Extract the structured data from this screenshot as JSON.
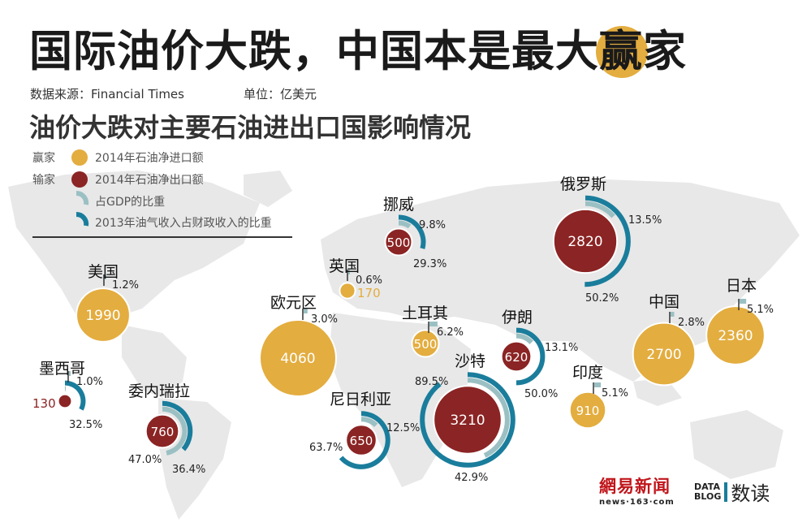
{
  "title_main": "国际油价大跌，中国本是最大",
  "title_highlight": "赢",
  "title_tail": "家",
  "source": "数据来源：Financial Times",
  "unit": "单位：亿美元",
  "subtitle": "油价大跌对主要石油进出口国影响情况",
  "legend": {
    "winner_label": "赢家",
    "loser_label": "输家",
    "import_label": "2014年石油净进口额",
    "export_label": "2014年石油净出口额",
    "gdp_label": "占GDP的比重",
    "revenue_label": "2013年油气收入占财政收入的比重"
  },
  "colors": {
    "importer": "#e3ad3f",
    "exporter": "#8b2424",
    "gdp_ring": "#9bc0c3",
    "revenue_ring": "#1a7d9c",
    "map": "#e8e8e8"
  },
  "chart_data": {
    "type": "bubble-map",
    "unit": "亿美元",
    "countries": [
      {
        "name": "美国",
        "kind": "importer",
        "value": 1990,
        "gdp_pct": 1.2
      },
      {
        "name": "墨西哥",
        "kind": "exporter",
        "value": 130,
        "gdp_pct": 1.0,
        "revenue_pct": 32.5
      },
      {
        "name": "委内瑞拉",
        "kind": "exporter",
        "value": 760,
        "gdp_pct": 47.0,
        "revenue_pct": 36.4
      },
      {
        "name": "欧元区",
        "kind": "importer",
        "value": 4060,
        "gdp_pct": 3.0
      },
      {
        "name": "英国",
        "kind": "importer",
        "value": 170,
        "gdp_pct": 0.6
      },
      {
        "name": "挪威",
        "kind": "exporter",
        "value": 500,
        "gdp_pct": 9.8,
        "revenue_pct": 29.3
      },
      {
        "name": "土耳其",
        "kind": "importer",
        "value": 500,
        "gdp_pct": 6.2
      },
      {
        "name": "尼日利亚",
        "kind": "exporter",
        "value": 650,
        "gdp_pct": 12.5,
        "revenue_pct": 63.7
      },
      {
        "name": "沙特",
        "kind": "exporter",
        "value": 3210,
        "gdp_pct": 42.9,
        "revenue_pct": 89.5
      },
      {
        "name": "伊朗",
        "kind": "exporter",
        "value": 620,
        "gdp_pct": 13.1,
        "revenue_pct": 50.0
      },
      {
        "name": "俄罗斯",
        "kind": "exporter",
        "value": 2820,
        "gdp_pct": 13.5,
        "revenue_pct": 50.2
      },
      {
        "name": "印度",
        "kind": "importer",
        "value": 910,
        "gdp_pct": 5.1
      },
      {
        "name": "中国",
        "kind": "importer",
        "value": 2700,
        "gdp_pct": 2.8
      },
      {
        "name": "日本",
        "kind": "importer",
        "value": 2360,
        "gdp_pct": 5.1
      }
    ]
  },
  "footer": {
    "logo1_top": "網易新闻",
    "logo1_bottom": "news·163·com",
    "logo2_badge_line1": "DATA",
    "logo2_badge_line2": "BLOG",
    "logo2_text": "数读"
  }
}
